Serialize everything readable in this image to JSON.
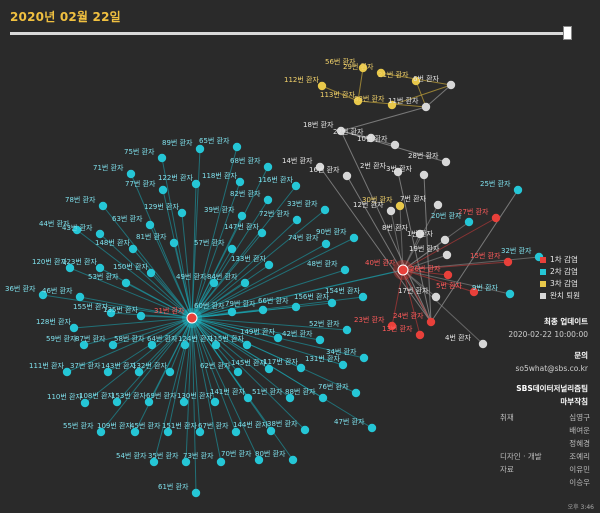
{
  "header": {
    "date": "2020년 02월 22일"
  },
  "colors": {
    "first": "#e8403a",
    "second": "#25c6d6",
    "third": "#e8c84a",
    "recovered": "#d7d7d7",
    "edge_second": "#1aa9b7",
    "edge_first": "#c83a3a"
  },
  "legend": [
    {
      "label": "1차 감염",
      "color": "#e8403a"
    },
    {
      "label": "2차 감염",
      "color": "#25c6d6"
    },
    {
      "label": "3차 감염",
      "color": "#e8c84a"
    },
    {
      "label": "완치 퇴원",
      "color": "#d7d7d7"
    }
  ],
  "update": {
    "title": "최종 업데이트",
    "value": "2020-02-22 10:00:00"
  },
  "contact": {
    "title": "문의",
    "value": "so5what@sbs.co.kr"
  },
  "team": {
    "name": "SBS데이터저널리즘팀",
    "name2": "마부작침"
  },
  "credits": [
    {
      "role": "취재",
      "name": "심영구"
    },
    {
      "role": "",
      "name": "배여운"
    },
    {
      "role": "",
      "name": "정혜경"
    },
    {
      "role": "디자인 · 개발",
      "name": "조예리"
    },
    {
      "role": "자료",
      "name": "이유민"
    },
    {
      "role": "",
      "name": "이승우"
    }
  ],
  "footer": "오후 3:46",
  "hubs": [
    {
      "id": "31",
      "label": "31번 환자"
    },
    {
      "id": "40",
      "label": "40번 환자"
    }
  ],
  "nodes": [
    {
      "label": "89번 환자",
      "g": "blue"
    },
    {
      "label": "65번 환자",
      "g": "blue"
    },
    {
      "label": "75번 환자",
      "g": "blue"
    },
    {
      "label": "68번 환자",
      "g": "blue"
    },
    {
      "label": "71번 환자",
      "g": "blue"
    },
    {
      "label": "122번 환자",
      "g": "blue"
    },
    {
      "label": "77번 환자",
      "g": "blue"
    },
    {
      "label": "118번 환자",
      "g": "blue"
    },
    {
      "label": "116번 환자",
      "g": "blue"
    },
    {
      "label": "78번 환자",
      "g": "blue"
    },
    {
      "label": "129번 환자",
      "g": "blue"
    },
    {
      "label": "82번 환자",
      "g": "blue"
    },
    {
      "label": "63번 환자",
      "g": "blue"
    },
    {
      "label": "33번 환자",
      "g": "blue"
    },
    {
      "label": "44번 환자",
      "g": "blue"
    },
    {
      "label": "43번 환자",
      "g": "blue"
    },
    {
      "label": "39번 환자",
      "g": "blue"
    },
    {
      "label": "72번 환자",
      "g": "blue"
    },
    {
      "label": "81번 환자",
      "g": "blue"
    },
    {
      "label": "147번 환자",
      "g": "blue"
    },
    {
      "label": "90번 환자",
      "g": "blue"
    },
    {
      "label": "148번 환자",
      "g": "blue"
    },
    {
      "label": "57번 환자",
      "g": "blue"
    },
    {
      "label": "74번 환자",
      "g": "blue"
    },
    {
      "label": "120번 환자",
      "g": "blue"
    },
    {
      "label": "123번 환자",
      "g": "blue"
    },
    {
      "label": "133번 환자",
      "g": "blue"
    },
    {
      "label": "150번 환자",
      "g": "blue"
    },
    {
      "label": "53번 환자",
      "g": "blue"
    },
    {
      "label": "48번 환자",
      "g": "blue"
    },
    {
      "label": "36번 환자",
      "g": "blue"
    },
    {
      "label": "46번 환자",
      "g": "blue"
    },
    {
      "label": "49번 환자",
      "g": "blue"
    },
    {
      "label": "84번 환자",
      "g": "blue"
    },
    {
      "label": "154번 환자",
      "g": "blue"
    },
    {
      "label": "156번 환자",
      "g": "blue"
    },
    {
      "label": "66번 환자",
      "g": "blue"
    },
    {
      "label": "155번 환자",
      "g": "blue"
    },
    {
      "label": "135번 환자",
      "g": "blue"
    },
    {
      "label": "60번 환자",
      "g": "blue"
    },
    {
      "label": "79번 환자",
      "g": "blue"
    },
    {
      "label": "128번 환자",
      "g": "blue"
    },
    {
      "label": "52번 환자",
      "g": "blue"
    },
    {
      "label": "59번 환자",
      "g": "blue"
    },
    {
      "label": "87번 환자",
      "g": "blue"
    },
    {
      "label": "58번 환자",
      "g": "blue"
    },
    {
      "label": "64번 환자",
      "g": "blue"
    },
    {
      "label": "124번 환자",
      "g": "blue"
    },
    {
      "label": "115번 환자",
      "g": "blue"
    },
    {
      "label": "149번 환자",
      "g": "blue"
    },
    {
      "label": "42번 환자",
      "g": "blue"
    },
    {
      "label": "34번 환자",
      "g": "blue"
    },
    {
      "label": "111번 환자",
      "g": "blue"
    },
    {
      "label": "37번 환자",
      "g": "blue"
    },
    {
      "label": "143번 환자",
      "g": "blue"
    },
    {
      "label": "132번 환자",
      "g": "blue"
    },
    {
      "label": "131번 환자",
      "g": "blue"
    },
    {
      "label": "62번 환자",
      "g": "blue"
    },
    {
      "label": "145번 환자",
      "g": "blue"
    },
    {
      "label": "117번 환자",
      "g": "blue"
    },
    {
      "label": "76번 환자",
      "g": "blue"
    },
    {
      "label": "110번 환자",
      "g": "blue"
    },
    {
      "label": "108번 환자",
      "g": "blue"
    },
    {
      "label": "153번 환자",
      "g": "blue"
    },
    {
      "label": "69번 환자",
      "g": "blue"
    },
    {
      "label": "130번 환자",
      "g": "blue"
    },
    {
      "label": "141번 환자",
      "g": "blue"
    },
    {
      "label": "51번 환자",
      "g": "blue"
    },
    {
      "label": "88번 환자",
      "g": "blue"
    },
    {
      "label": "47번 환자",
      "g": "blue"
    },
    {
      "label": "55번 환자",
      "g": "blue"
    },
    {
      "label": "109번 환자",
      "g": "blue"
    },
    {
      "label": "45번 환자",
      "g": "blue"
    },
    {
      "label": "151번 환자",
      "g": "blue"
    },
    {
      "label": "67번 환자",
      "g": "blue"
    },
    {
      "label": "144번 환자",
      "g": "blue"
    },
    {
      "label": "38번 환자",
      "g": "blue"
    },
    {
      "label": "54번 환자",
      "g": "blue"
    },
    {
      "label": "35번 환자",
      "g": "blue"
    },
    {
      "label": "73번 환자",
      "g": "blue"
    },
    {
      "label": "70번 환자",
      "g": "blue"
    },
    {
      "label": "80번 환자",
      "g": "blue"
    },
    {
      "label": "61번 환자",
      "g": "blue"
    },
    {
      "label": "56번 환자",
      "g": "yellow"
    },
    {
      "label": "29번 환자",
      "g": "yellow"
    },
    {
      "label": "112번 환자",
      "g": "yellow"
    },
    {
      "label": "21번 환자",
      "g": "yellow"
    },
    {
      "label": "113번 환자",
      "g": "yellow"
    },
    {
      "label": "83번 환자",
      "g": "yellow"
    },
    {
      "label": "6번 환자",
      "g": "white"
    },
    {
      "label": "11번 환자",
      "g": "white"
    },
    {
      "label": "18번 환자",
      "g": "white"
    },
    {
      "label": "22번 환자",
      "g": "white"
    },
    {
      "label": "10번 환자",
      "g": "white"
    },
    {
      "label": "28번 환자",
      "g": "white"
    },
    {
      "label": "14번 환자",
      "g": "white"
    },
    {
      "label": "2번 환자",
      "g": "white"
    },
    {
      "label": "3번 환자",
      "g": "white"
    },
    {
      "label": "16번 환자",
      "g": "white"
    },
    {
      "label": "25번 환자",
      "g": "blue"
    },
    {
      "label": "30번 환자",
      "g": "yellow"
    },
    {
      "label": "7번 환자",
      "g": "white"
    },
    {
      "label": "12번 환자",
      "g": "white"
    },
    {
      "label": "27번 환자",
      "g": "red"
    },
    {
      "label": "20번 환자",
      "g": "blue"
    },
    {
      "label": "8번 환자",
      "g": "white"
    },
    {
      "label": "1번 환자",
      "g": "white"
    },
    {
      "label": "19번 환자",
      "g": "white"
    },
    {
      "label": "32번 환자",
      "g": "blue"
    },
    {
      "label": "15번 환자",
      "g": "red"
    },
    {
      "label": "26번 환자",
      "g": "red"
    },
    {
      "label": "5번 환자",
      "g": "red"
    },
    {
      "label": "9번 환자",
      "g": "blue"
    },
    {
      "label": "17번 환자",
      "g": "white"
    },
    {
      "label": "24번 환자",
      "g": "red"
    },
    {
      "label": "23번 환자",
      "g": "red"
    },
    {
      "label": "13번 환자",
      "g": "red"
    },
    {
      "label": "4번 환자",
      "g": "white"
    }
  ]
}
